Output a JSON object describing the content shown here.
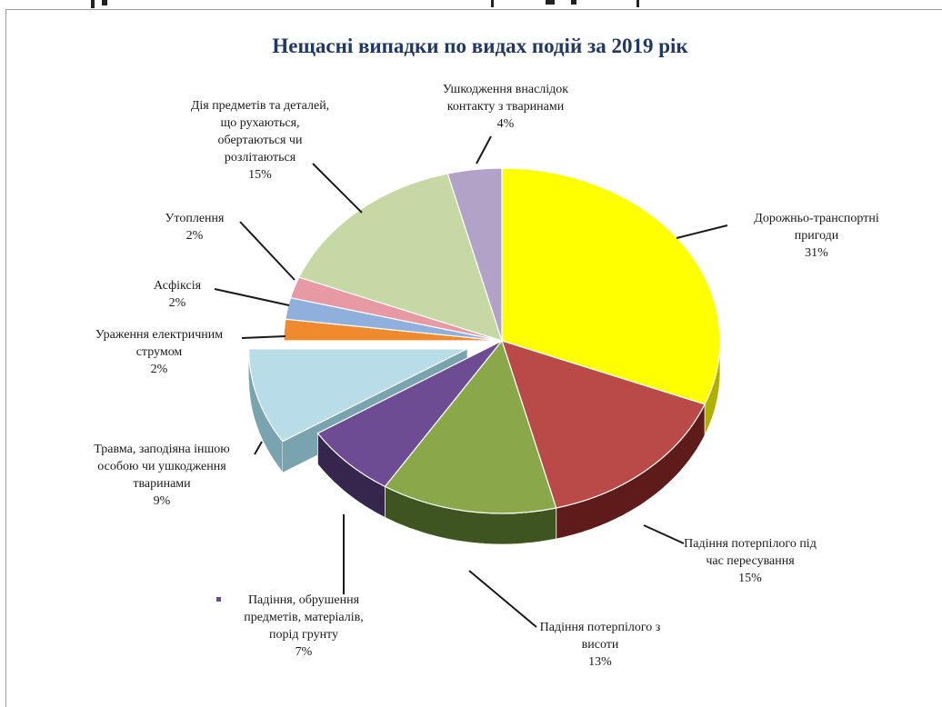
{
  "chart_data": {
    "type": "pie",
    "title": "Нещасні випадки по видах подій за 2019 рік",
    "slices": [
      {
        "lines": [
          "Дорожньо-транспортні",
          "пригоди"
        ],
        "pct": "31%",
        "value": 31,
        "color": "#ffff00",
        "side": "#b0b000"
      },
      {
        "lines": [
          "Падіння потерпілого під",
          "час пересування"
        ],
        "pct": "15%",
        "value": 15,
        "color": "#b94a48",
        "side": "#5e1b1a"
      },
      {
        "lines": [
          "Падіння потерпілого з",
          "висоти"
        ],
        "pct": "13%",
        "value": 13,
        "color": "#8aa84a",
        "side": "#3f5520"
      },
      {
        "lines": [
          "Падіння, обрушення",
          "предметів, матеріалів,",
          "порід грунту"
        ],
        "pct": "7%",
        "value": 7,
        "color": "#6d4c94",
        "side": "#36254c"
      },
      {
        "lines": [
          "Травма, заподіяна іншою",
          "особою чи ушкодження",
          "тваринами"
        ],
        "pct": "9%",
        "value": 9,
        "color": "#b8dde8",
        "side": "#7aa3b0",
        "exploded": true
      },
      {
        "lines": [
          "Ураження електричним",
          "струмом"
        ],
        "pct": "2%",
        "value": 2,
        "color": "#ef8a2f",
        "side": "#9a4e10"
      },
      {
        "lines": [
          "Асфіксія"
        ],
        "pct": "2%",
        "value": 2,
        "color": "#8fb0dd",
        "side": "#4f6c96"
      },
      {
        "lines": [
          "Утоплення"
        ],
        "pct": "2%",
        "value": 2,
        "color": "#e79aa4",
        "side": "#a55a64"
      },
      {
        "lines": [
          "Дія предметів та деталей,",
          "що рухаються,",
          "обертаються чи",
          "розлітаються"
        ],
        "pct": "15%",
        "value": 15,
        "color": "#c6d9a4",
        "side": "#869a62"
      },
      {
        "lines": [
          "Ушкодження внаслідок",
          "контакту з тваринами"
        ],
        "pct": "4%",
        "value": 4,
        "color": "#b3a2c8",
        "side": "#716284"
      }
    ]
  }
}
